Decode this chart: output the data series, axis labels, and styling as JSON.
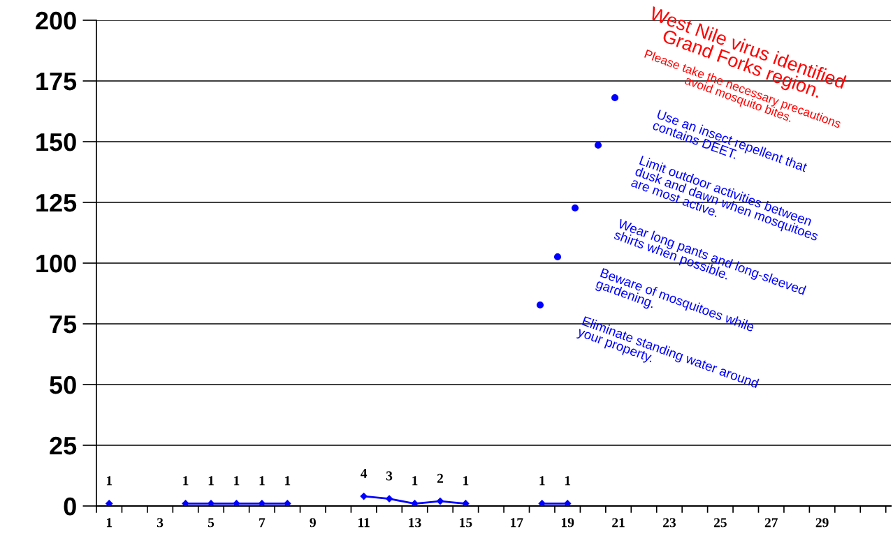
{
  "chart_data": {
    "type": "line",
    "categories": [
      "1",
      null,
      "3",
      null,
      "5",
      null,
      "7",
      null,
      "9",
      null,
      "11",
      null,
      "13",
      null,
      "15",
      null,
      "17",
      null,
      "19",
      null,
      "21",
      null,
      "23",
      null,
      "25",
      null,
      "27",
      null,
      "29",
      null,
      null
    ],
    "series": [
      {
        "color": "#0000ff",
        "values": [
          1,
          null,
          null,
          1,
          1,
          1,
          1,
          1,
          null,
          null,
          4,
          3,
          1,
          2,
          1,
          null,
          null,
          1,
          1,
          null,
          null,
          null,
          null,
          null,
          null,
          null,
          null,
          null,
          null,
          null,
          null
        ]
      }
    ],
    "ylim": [
      0,
      200
    ],
    "yticks": [
      0,
      25,
      50,
      75,
      100,
      125,
      150,
      175,
      200
    ],
    "grid": "y",
    "marker": "diamond",
    "data_labels": true,
    "annotations": [
      "West Nile virus identified\nGrand Forks region.",
      "Please take the necessary precautions\navoid mosquito bites.",
      "Use an insect repellent that\ncontains DEET.",
      "Limit outdoor activities between\ndusk and dawn when mosquitoes\nare most active.",
      "Wear long pants and long-sleeved\nshirts when possible.",
      "Beware of mosquitoes while\ngardening.",
      "Eliminate standing water around\nyour property."
    ]
  }
}
